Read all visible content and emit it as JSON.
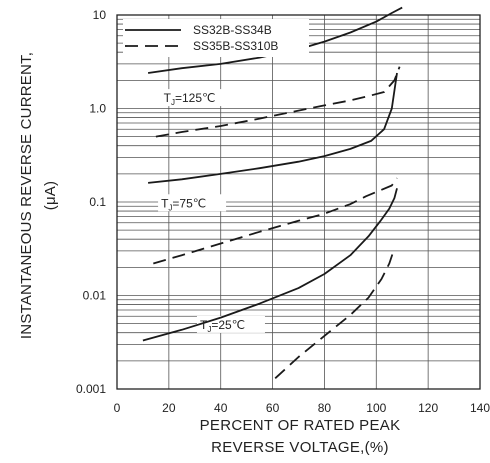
{
  "chart_data": {
    "type": "line",
    "xlabel": [
      "PERCENT OF RATED PEAK",
      "REVERSE VOLTAGE,(%)"
    ],
    "ylabel": [
      "INSTANTANEOUS REVERSE CURRENT,",
      "(μA)"
    ],
    "x_ticks": [
      "0",
      "20",
      "40",
      "60",
      "80",
      "100",
      "120",
      "140"
    ],
    "x_tick_values": [
      0,
      20,
      40,
      60,
      80,
      100,
      120,
      140
    ],
    "y_ticks": [
      "10",
      "1.0",
      "0.1",
      "0.01",
      "0.001"
    ],
    "y_tick_values": [
      10,
      1,
      0.1,
      0.01,
      0.001
    ],
    "xlim": [
      0,
      140
    ],
    "ylim": [
      0.001,
      10
    ],
    "y_scale": "log",
    "grid": true,
    "legend": {
      "position": "top-left",
      "entries": [
        {
          "label": "SS32B-SS34B",
          "style": "solid"
        },
        {
          "label": "SS35B-SS310B",
          "style": "dashed"
        }
      ]
    },
    "annotations": [
      {
        "text": "TJ=125℃",
        "x": 18,
        "y": 1.2
      },
      {
        "text": "TJ=75℃",
        "x": 17,
        "y": 0.09
      },
      {
        "text": "TJ=25℃",
        "x": 32,
        "y": 0.0045
      }
    ],
    "series": [
      {
        "group": "TJ=125℃",
        "style": "solid",
        "x": [
          12,
          25,
          40,
          55,
          70,
          80,
          90,
          100,
          106,
          110
        ],
        "y": [
          2.4,
          2.7,
          3.0,
          3.5,
          4.3,
          5.2,
          6.5,
          8.5,
          10.5,
          12
        ]
      },
      {
        "group": "TJ=125℃",
        "style": "dashed",
        "x": [
          15,
          25,
          40,
          55,
          70,
          80,
          90,
          98,
          103,
          107,
          109
        ],
        "y": [
          0.5,
          0.56,
          0.65,
          0.78,
          0.95,
          1.08,
          1.22,
          1.38,
          1.5,
          2.0,
          2.8
        ]
      },
      {
        "group": "TJ=75℃",
        "style": "solid",
        "x": [
          12,
          25,
          40,
          55,
          70,
          80,
          90,
          98,
          103,
          106,
          108
        ],
        "y": [
          0.16,
          0.175,
          0.2,
          0.23,
          0.27,
          0.31,
          0.37,
          0.45,
          0.6,
          1.0,
          2.4
        ]
      },
      {
        "group": "TJ=75℃",
        "style": "dashed",
        "x": [
          14,
          25,
          40,
          55,
          70,
          80,
          90,
          96,
          102,
          106,
          108
        ],
        "y": [
          0.022,
          0.027,
          0.036,
          0.048,
          0.063,
          0.075,
          0.095,
          0.115,
          0.135,
          0.15,
          0.18
        ]
      },
      {
        "group": "TJ=25℃",
        "style": "solid",
        "x": [
          10,
          25,
          40,
          55,
          70,
          80,
          90,
          97,
          102,
          105,
          107,
          108
        ],
        "y": [
          0.0033,
          0.0043,
          0.0058,
          0.0082,
          0.012,
          0.017,
          0.027,
          0.043,
          0.065,
          0.085,
          0.11,
          0.14
        ]
      },
      {
        "group": "TJ=25℃",
        "style": "dashed",
        "x": [
          61,
          70,
          80,
          90,
          97,
          102,
          105,
          107
        ],
        "y": [
          0.0013,
          0.0022,
          0.0037,
          0.0062,
          0.0095,
          0.015,
          0.022,
          0.032
        ]
      }
    ]
  }
}
